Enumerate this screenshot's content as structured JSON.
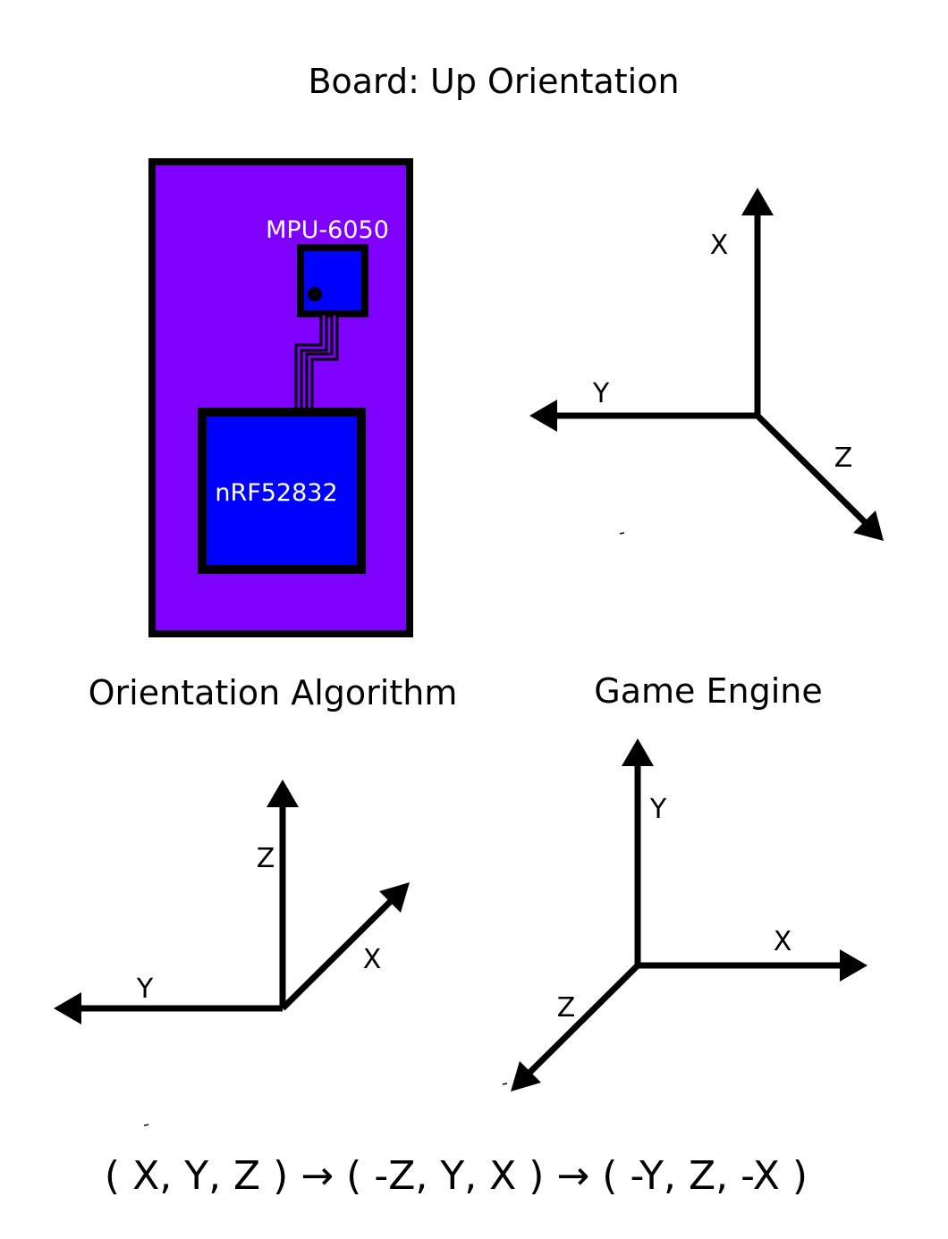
{
  "titles": {
    "board": "Board: Up Orientation",
    "algorithm": "Orientation Algorithm",
    "engine": "Game Engine"
  },
  "board": {
    "chip_small": "MPU-6050",
    "chip_large": "nRF52832",
    "pcb_color": "#7f00ff",
    "chip_color": "#0000ff"
  },
  "axes": {
    "board": {
      "up": "X",
      "left": "Y",
      "diagonal": "Z"
    },
    "algorithm": {
      "up": "Z",
      "left": "Y",
      "diagonal": "X"
    },
    "engine": {
      "up": "Y",
      "right": "X",
      "diagonal": "Z"
    }
  },
  "formula": "( X, Y, Z ) → ( -Z, Y, X ) → ( -Y, Z, -X )"
}
